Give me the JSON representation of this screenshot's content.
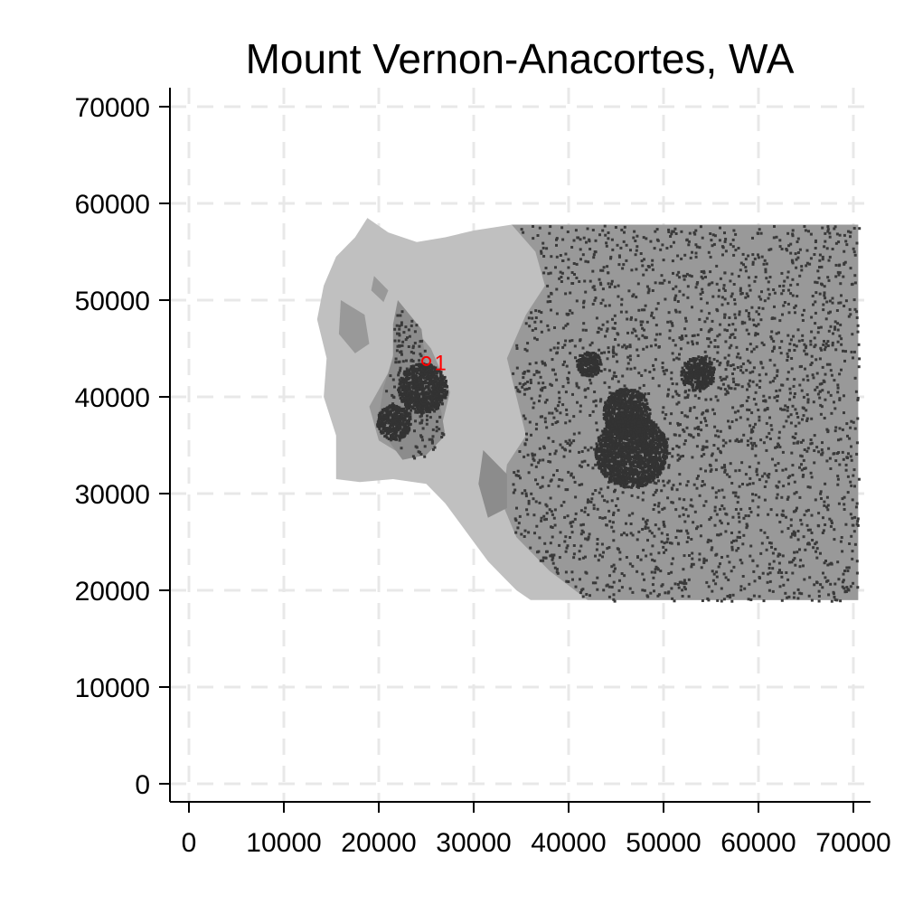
{
  "title": "Mount Vernon-Anacortes, WA",
  "chart_data": {
    "type": "map",
    "title": "Mount Vernon-Anacortes, WA",
    "xlim": [
      0,
      70000
    ],
    "ylim": [
      0,
      70000
    ],
    "x_ticks": [
      0,
      10000,
      20000,
      30000,
      40000,
      50000,
      60000,
      70000
    ],
    "y_ticks": [
      0,
      10000,
      20000,
      30000,
      40000,
      50000,
      60000,
      70000
    ],
    "x_tick_labels": [
      "0",
      "10000",
      "20000",
      "30000",
      "40000",
      "50000",
      "60000",
      "70000"
    ],
    "y_tick_labels": [
      "0",
      "10000",
      "20000",
      "30000",
      "40000",
      "50000",
      "60000",
      "70000"
    ],
    "grid": true,
    "markers": [
      {
        "label": "1",
        "x": 25000,
        "y": 43700,
        "color": "#ff0000"
      }
    ],
    "regions": [
      {
        "name": "outer-boundary",
        "color": "#c0c0c0",
        "points": [
          [
            34000,
            57800
          ],
          [
            70500,
            57800
          ],
          [
            70500,
            19000
          ],
          [
            36000,
            19000
          ],
          [
            34500,
            20000
          ],
          [
            33000,
            21500
          ],
          [
            31500,
            23000
          ],
          [
            30000,
            25000
          ],
          [
            28500,
            27000
          ],
          [
            27000,
            29000
          ],
          [
            25000,
            31000
          ],
          [
            21500,
            31500
          ],
          [
            18000,
            31200
          ],
          [
            15500,
            31500
          ],
          [
            15500,
            36000
          ],
          [
            14200,
            40000
          ],
          [
            14500,
            44000
          ],
          [
            13500,
            48000
          ],
          [
            14200,
            51500
          ],
          [
            15500,
            54500
          ],
          [
            17500,
            56500
          ],
          [
            18800,
            58500
          ],
          [
            21000,
            57000
          ],
          [
            24000,
            56000
          ],
          [
            27000,
            56500
          ],
          [
            30000,
            57200
          ]
        ]
      },
      {
        "name": "east-region",
        "color": "#999999",
        "points": [
          [
            34000,
            57800
          ],
          [
            70500,
            57800
          ],
          [
            70500,
            19000
          ],
          [
            42000,
            19000
          ],
          [
            38000,
            22000
          ],
          [
            34500,
            25500
          ],
          [
            33000,
            29000
          ],
          [
            33500,
            33000
          ],
          [
            35500,
            36000
          ],
          [
            34500,
            40000
          ],
          [
            33500,
            44000
          ],
          [
            35500,
            48500
          ],
          [
            37500,
            51500
          ],
          [
            36500,
            55000
          ]
        ]
      },
      {
        "name": "west-island",
        "color": "#999999",
        "points": [
          [
            22500,
            48500
          ],
          [
            25500,
            45000
          ],
          [
            27500,
            40500
          ],
          [
            26500,
            36500
          ],
          [
            22500,
            34000
          ],
          [
            20000,
            35500
          ],
          [
            19000,
            39000
          ],
          [
            21000,
            42500
          ],
          [
            22000,
            46000
          ]
        ]
      },
      {
        "name": "fidalgo-island",
        "color": "#8c8c8c",
        "points": [
          [
            22000,
            50000
          ],
          [
            24500,
            47000
          ],
          [
            25000,
            43000
          ],
          [
            26500,
            39000
          ],
          [
            27000,
            36000
          ],
          [
            25000,
            34000
          ],
          [
            22500,
            33500
          ],
          [
            21000,
            35500
          ],
          [
            20000,
            38000
          ],
          [
            20500,
            41000
          ],
          [
            21500,
            44000
          ],
          [
            21500,
            47500
          ]
        ]
      },
      {
        "name": "guemes-island",
        "color": "#999999",
        "points": [
          [
            16000,
            50000
          ],
          [
            18500,
            48500
          ],
          [
            19000,
            45500
          ],
          [
            17500,
            44500
          ],
          [
            15800,
            46500
          ]
        ]
      },
      {
        "name": "north-islet",
        "color": "#999999",
        "points": [
          [
            19500,
            52500
          ],
          [
            21000,
            51000
          ],
          [
            20500,
            49800
          ],
          [
            19200,
            51000
          ]
        ]
      },
      {
        "name": "south-point",
        "color": "#8c8c8c",
        "points": [
          [
            31000,
            34500
          ],
          [
            33500,
            32000
          ],
          [
            33500,
            28500
          ],
          [
            31500,
            27500
          ],
          [
            30500,
            31000
          ]
        ]
      }
    ],
    "urban_clusters": [
      {
        "x": 46500,
        "y": 34500,
        "radius": 3800
      },
      {
        "x": 46000,
        "y": 38500,
        "radius": 2500
      },
      {
        "x": 53500,
        "y": 42500,
        "radius": 1800
      },
      {
        "x": 24500,
        "y": 41000,
        "radius": 2600
      },
      {
        "x": 21500,
        "y": 37500,
        "radius": 1800
      },
      {
        "x": 42000,
        "y": 43500,
        "radius": 1300
      }
    ]
  }
}
